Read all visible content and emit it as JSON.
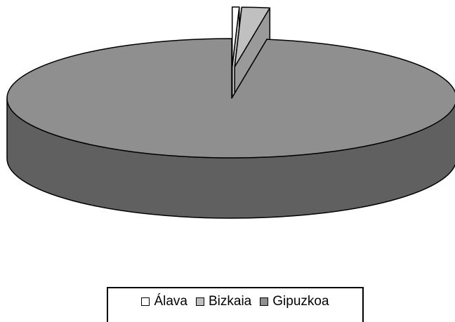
{
  "chart_data": {
    "type": "pie",
    "categories": [
      "Álava",
      "Bizkaia",
      "Gipuzkoa"
    ],
    "values": [
      0.5,
      2,
      97.5
    ],
    "colors": [
      "#ffffff",
      "#c0c0c0",
      "#8f8f8f"
    ],
    "legend": "bottom"
  }
}
